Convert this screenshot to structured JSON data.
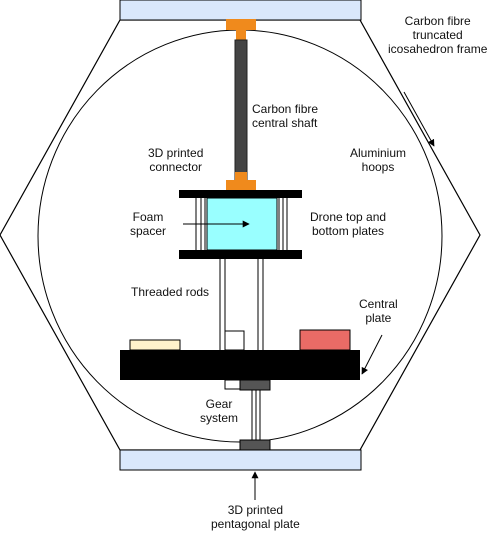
{
  "labels": {
    "frame": [
      "Carbon fibre",
      "truncated",
      "icosahedron frame"
    ],
    "shaft": [
      "Carbon fibre",
      "central shaft"
    ],
    "connector": [
      "3D printed",
      "connector"
    ],
    "hoops": [
      "Aluminium",
      "hoops"
    ],
    "foam": [
      "Foam",
      "spacer"
    ],
    "drone_plates": [
      "Drone top and",
      "bottom plates"
    ],
    "rods": [
      "Threaded rods"
    ],
    "central_plate": [
      "Central",
      "plate"
    ],
    "gear": [
      "Gear",
      "system"
    ],
    "pentagonal_plate": [
      "3D printed",
      "pentagonal plate"
    ]
  },
  "colors": {
    "pentagonal_plate": "#dae8fc",
    "connector": "#f08a1c",
    "shaft": "#444444",
    "foam": "#99ffff",
    "plates": "#000000",
    "component_left": "#fff2cc",
    "component_right": "#ea6b66",
    "gear": "#555555"
  }
}
